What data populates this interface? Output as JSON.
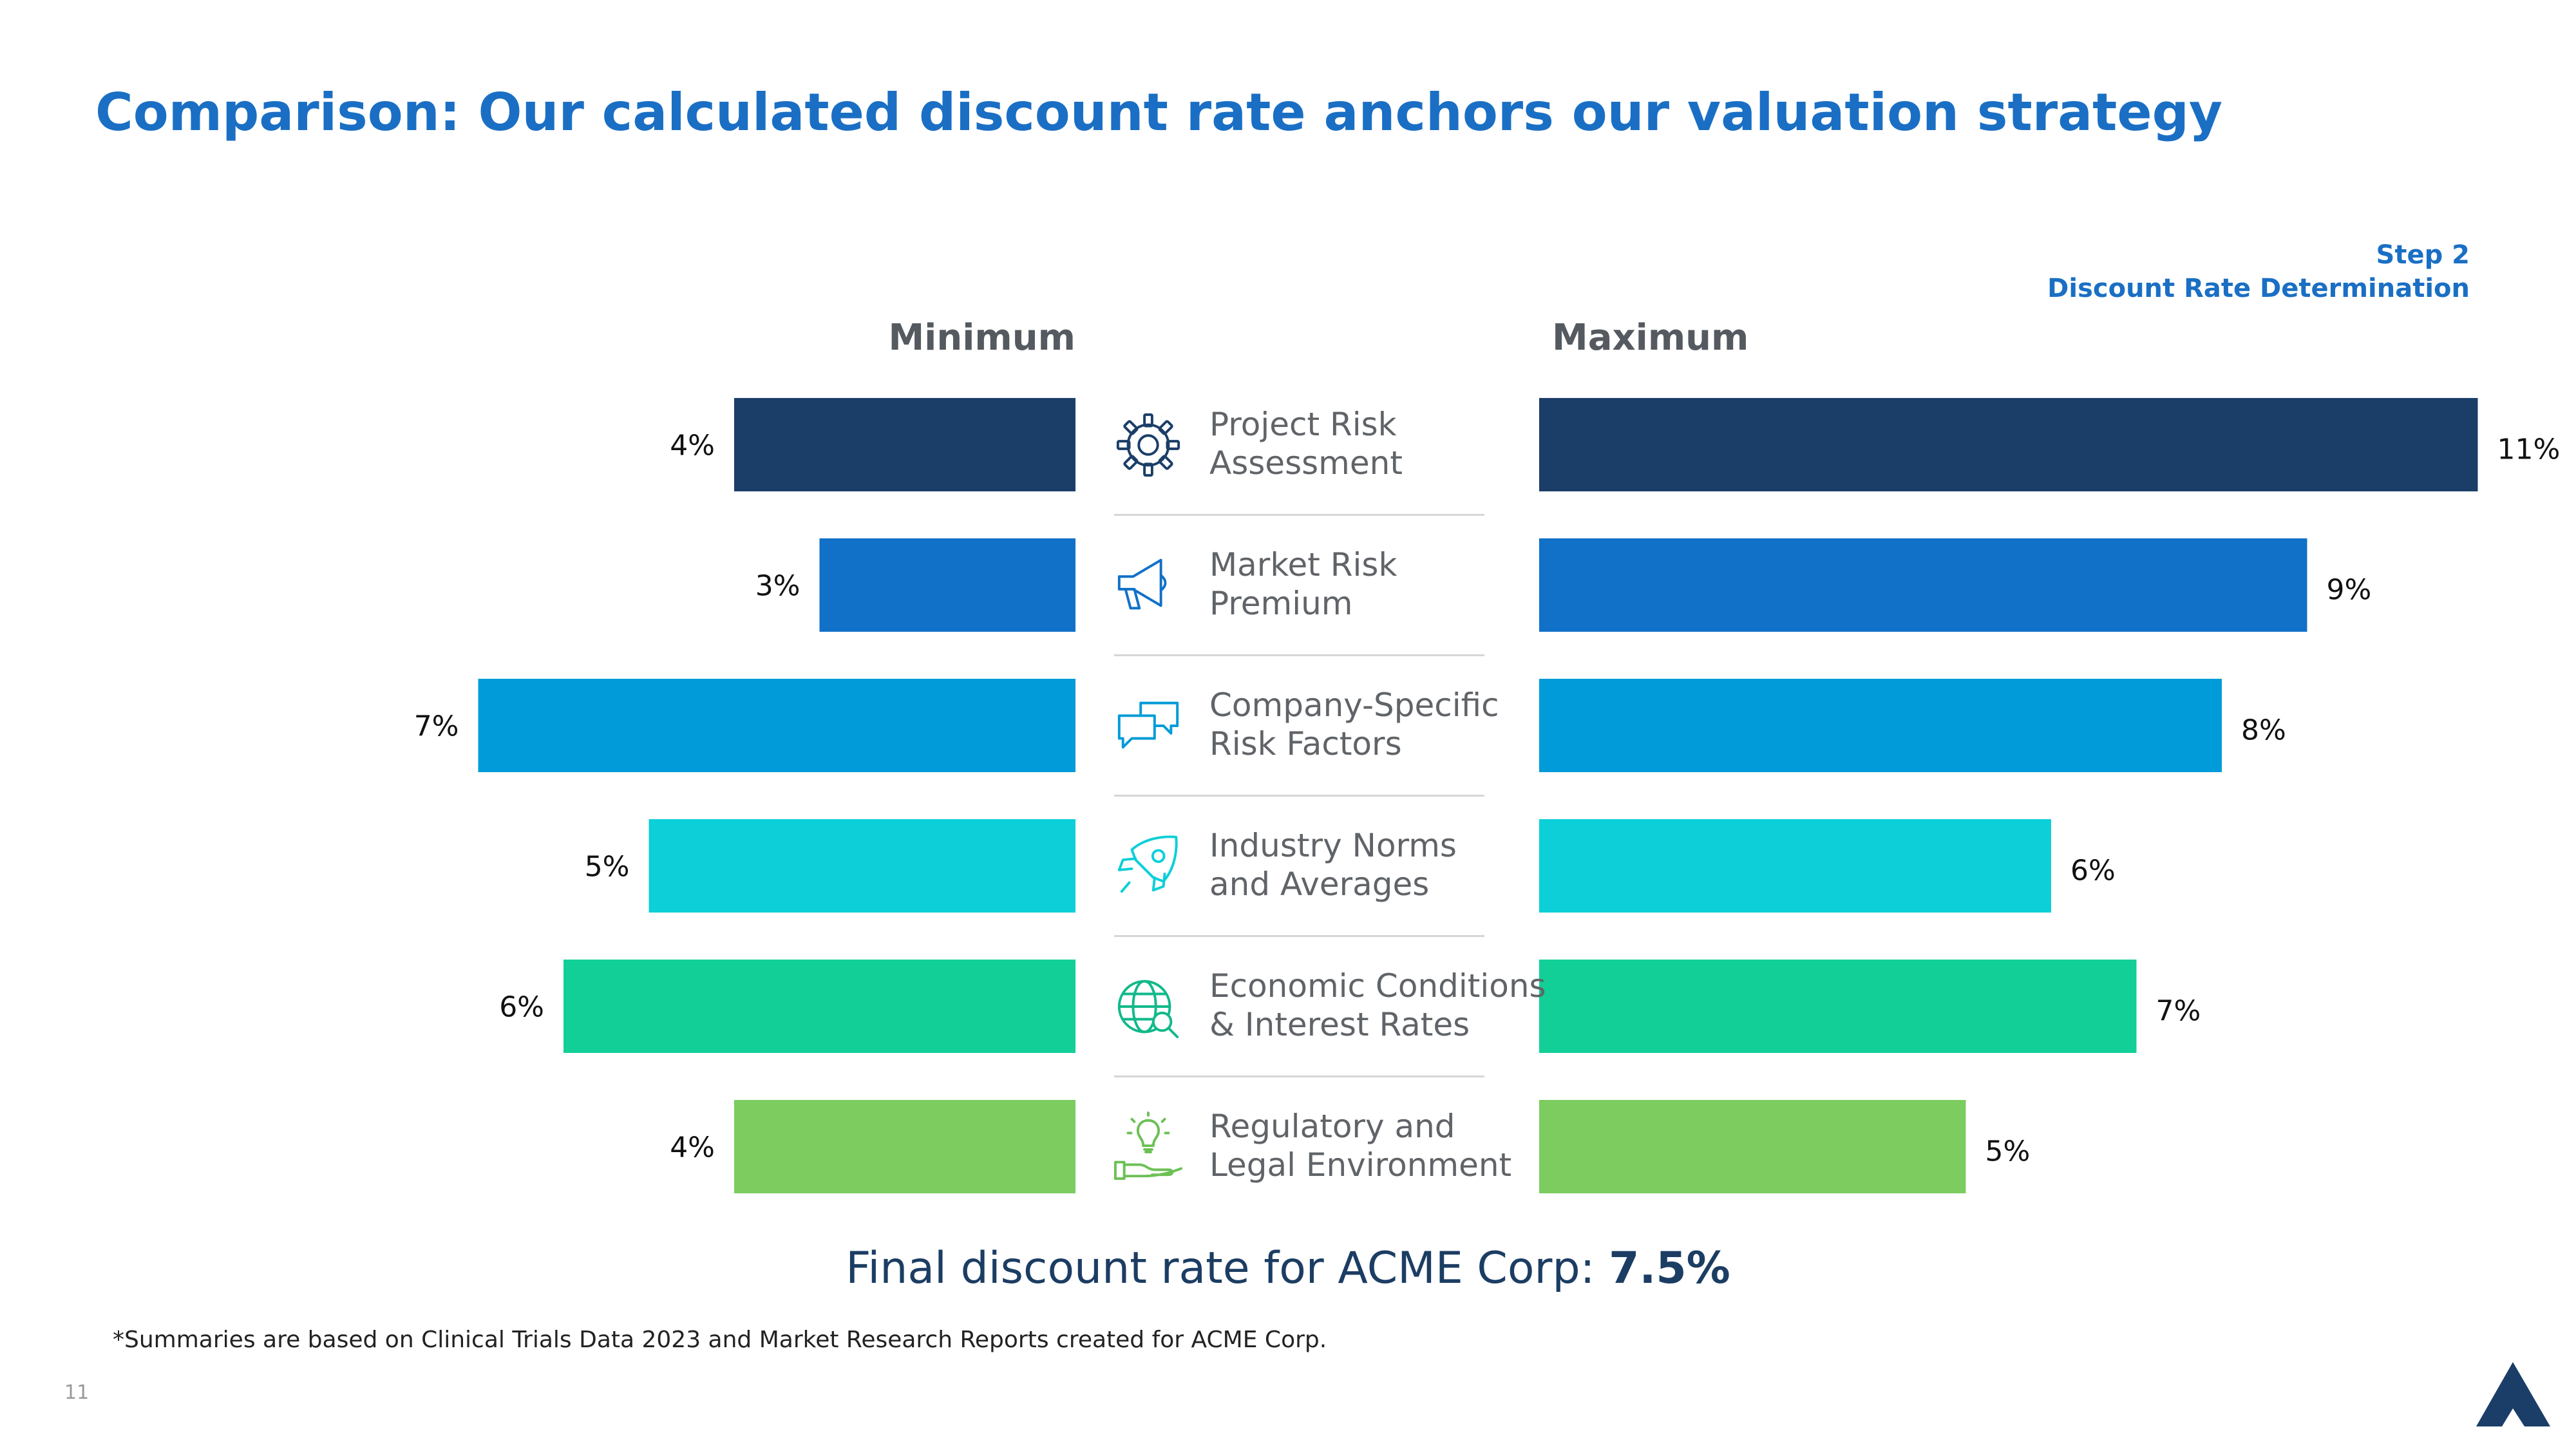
{
  "title": "Comparison: Our calculated discount rate anchors our valuation strategy",
  "step": {
    "line1": "Step 2",
    "line2": "Discount Rate Determination"
  },
  "final": {
    "prefix": "Final discount rate for ACME Corp:",
    "value": "7.5%"
  },
  "footnote": "*Summaries are based on Clinical Trials Data 2023 and Market Research Reports created for ACME Corp.",
  "page_number": "11",
  "categories": [
    {
      "line1": "Project Risk",
      "line2": "Assessment",
      "icon": "gear-icon"
    },
    {
      "line1": "Market Risk",
      "line2": "Premium",
      "icon": "megaphone-icon"
    },
    {
      "line1": "Company-Specific",
      "line2": "Risk Factors",
      "icon": "chat-bubbles-icon"
    },
    {
      "line1": "Industry Norms",
      "line2": "and Averages",
      "icon": "rocket-icon"
    },
    {
      "line1": "Economic Conditions",
      "line2": "& Interest Rates",
      "icon": "globe-search-icon"
    },
    {
      "line1": "Regulatory and",
      "line2": "Legal Environment",
      "icon": "hand-lightbulb-icon"
    }
  ],
  "chart_data": {
    "type": "bar",
    "orientation": "horizontal-diverging",
    "categories": [
      "Project Risk Assessment",
      "Market Risk Premium",
      "Company-Specific Risk Factors",
      "Industry Norms and Averages",
      "Economic Conditions & Interest Rates",
      "Regulatory and Legal Environment"
    ],
    "series": [
      {
        "name": "Minimum",
        "values": [
          4,
          3,
          7,
          5,
          6,
          4
        ],
        "labels": [
          "4%",
          "3%",
          "7%",
          "5%",
          "6%",
          "4%"
        ]
      },
      {
        "name": "Maximum",
        "values": [
          11,
          9,
          8,
          6,
          7,
          5
        ],
        "labels": [
          "11%",
          "9%",
          "8%",
          "6%",
          "7%",
          "5%"
        ]
      }
    ],
    "unit": "%",
    "colors": [
      "#1b3e68",
      "#1170c8",
      "#009bd8",
      "#0ccfd8",
      "#12cf98",
      "#7ccc60"
    ],
    "icon_colors": [
      "#1b3e68",
      "#1170c8",
      "#009bd8",
      "#0ccfd8",
      "#12b98a",
      "#6cc055"
    ]
  },
  "logo": "acme-triangle-logo"
}
